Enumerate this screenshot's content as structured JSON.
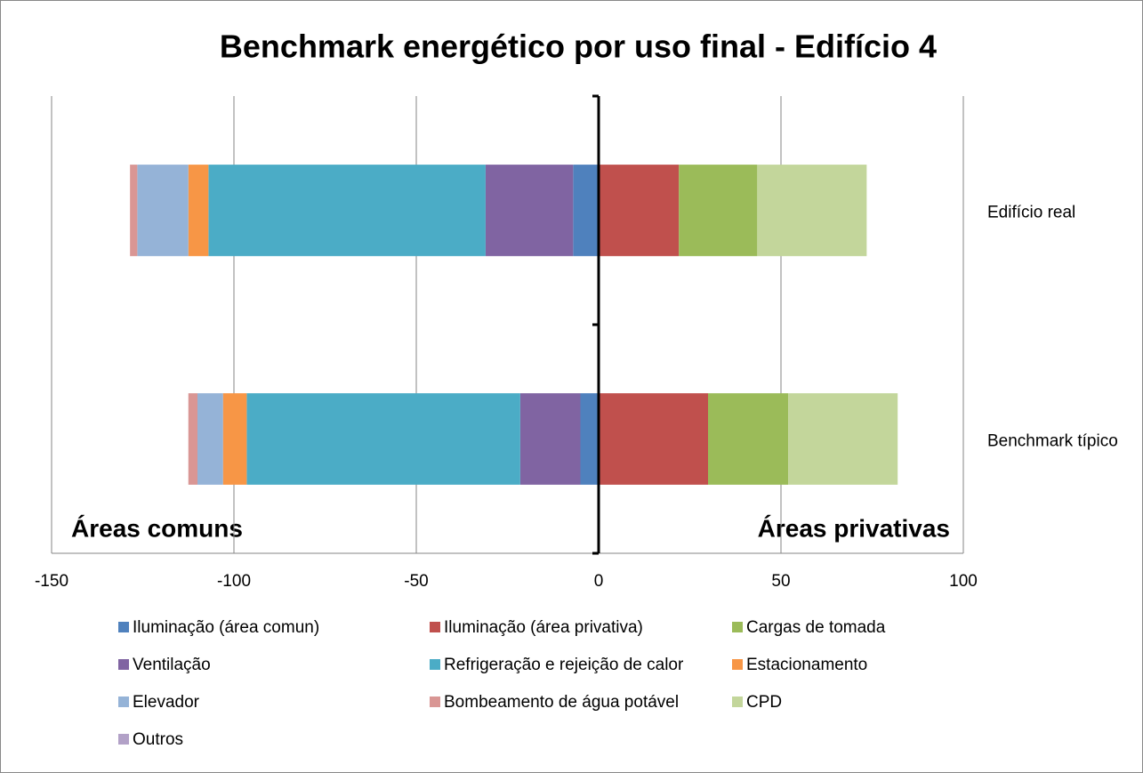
{
  "chart_data": {
    "type": "bar",
    "orientation": "horizontal",
    "stacked": true,
    "title": "Benchmark energético por uso final - Edifício 4",
    "categories": [
      "Edifício real",
      "Benchmark típico"
    ],
    "annotations": [
      "Áreas comuns",
      "Áreas privativas"
    ],
    "series": [
      {
        "name": "Iluminação (área comun)",
        "color": "#4f81bd",
        "values": [
          -7,
          -5
        ]
      },
      {
        "name": "Iluminação (área privativa)",
        "color": "#c0504d",
        "values": [
          22,
          30
        ]
      },
      {
        "name": "Cargas de tomada",
        "color": "#9bbb59",
        "values": [
          21.5,
          22
        ]
      },
      {
        "name": "Ventilação",
        "color": "#8064a2",
        "values": [
          -24,
          -16.5
        ]
      },
      {
        "name": "Refrigeração e rejeição de calor",
        "color": "#4bacc6",
        "values": [
          -76,
          -75
        ]
      },
      {
        "name": "Estacionamento",
        "color": "#f79646",
        "values": [
          -5.5,
          -6.5
        ]
      },
      {
        "name": "Elevador",
        "color": "#95b3d7",
        "values": [
          -14,
          -7
        ]
      },
      {
        "name": "Bombeamento de água potável",
        "color": "#d99694",
        "values": [
          -2,
          -2.5
        ]
      },
      {
        "name": "CPD",
        "color": "#c3d69b",
        "values": [
          30,
          30
        ]
      },
      {
        "name": "Outros",
        "color": "#b2a1c7",
        "values": [
          0,
          0
        ]
      }
    ],
    "xlim": [
      -150,
      100
    ],
    "xticks": [
      -150,
      -100,
      -50,
      0,
      50,
      100
    ],
    "grid": true,
    "legend": "bottom"
  }
}
